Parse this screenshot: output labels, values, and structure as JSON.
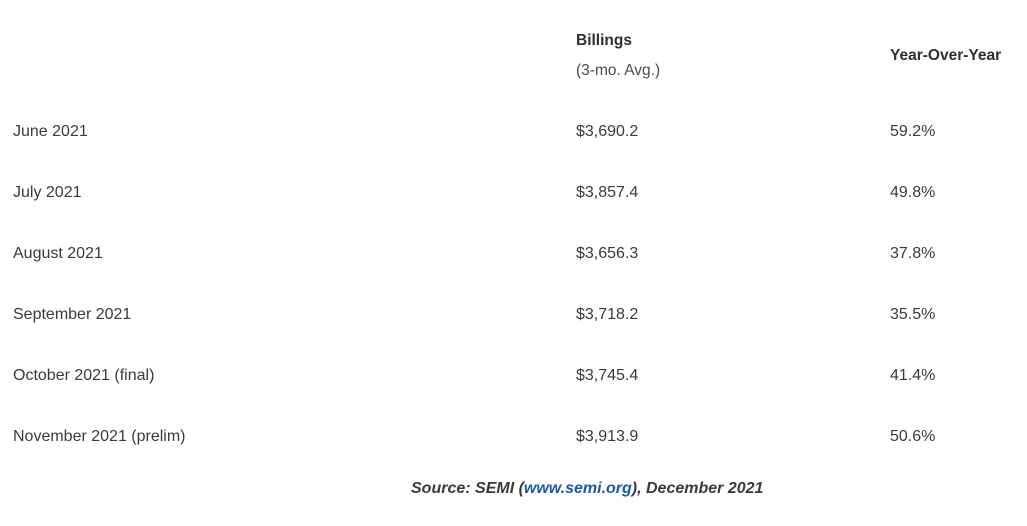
{
  "header": {
    "billings_label": "Billings",
    "billings_sub": "(3-mo. Avg.)",
    "yoy_label": "Year-Over-Year"
  },
  "rows": [
    {
      "period": "June 2021",
      "billings": "$3,690.2",
      "yoy": "59.2%"
    },
    {
      "period": "July 2021",
      "billings": "$3,857.4",
      "yoy": "49.8%"
    },
    {
      "period": "August 2021",
      "billings": "$3,656.3",
      "yoy": "37.8%"
    },
    {
      "period": "September 2021",
      "billings": "$3,718.2",
      "yoy": "35.5%"
    },
    {
      "period": "October 2021 (final)",
      "billings": "$3,745.4",
      "yoy": "41.4%"
    },
    {
      "period": "November 2021 (prelim)",
      "billings": "$3,913.9",
      "yoy": "50.6%"
    }
  ],
  "source": {
    "prefix": "Source: SEMI (",
    "link_text": "www.semi.org",
    "suffix": "), December 2021"
  },
  "colors": {
    "link": "#1a5aa8",
    "text": "#3a3a3a"
  }
}
